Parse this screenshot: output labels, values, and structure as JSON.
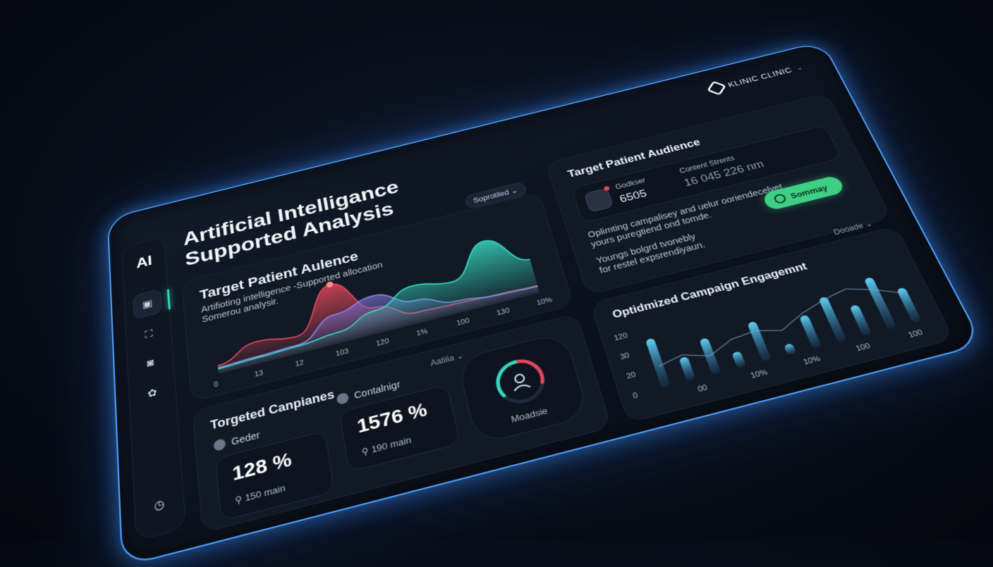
{
  "brand": {
    "name": "KLINIC CLINIC",
    "chevron": "⌄"
  },
  "sidebar": {
    "logo_text": "AI",
    "icons": [
      "dashboard-icon",
      "scan-icon",
      "camera-icon",
      "globe-icon",
      "timer-icon"
    ]
  },
  "hero": {
    "line1": "Artificial Intelligance",
    "line2": "Supported Analysis"
  },
  "audience_chart": {
    "title": "Target Patient Aulence",
    "subtitle_line1": "Artifioting intelligence -Supported allocation",
    "subtitle_line2": "Somerou analysir.",
    "filter": "Soprotiled ⌄",
    "x_ticks": [
      "0",
      "13",
      "12",
      "103",
      "120",
      "1%",
      "100",
      "130",
      "10%"
    ]
  },
  "audience_panel": {
    "title": "Target Patient Audience",
    "stat1_label": "Godkser",
    "stat1_value": "6505",
    "stat2_label": "Content Strents",
    "stat2_value": "16 045 226 nm",
    "desc1_line1": "Oplimting campalisey and uelur ooriendecelyet",
    "desc1_line2": "yours puregtiend ond tomde.",
    "desc2_line1": "Youngs bolgrd tvonebly",
    "desc2_line2": "for restel expsrendiyaun.",
    "button": "Sommay"
  },
  "campaigns": {
    "title": "Torgeted Canpianes",
    "dropdown": "Aatiiia ⌄",
    "gender_label": "Geder",
    "gender_value": "128 %",
    "gender_sub": "150 main",
    "contact_label": "Contalnigr",
    "contact_value": "1576 %",
    "contact_sub": "190 main",
    "gauge_label": "Moadsie"
  },
  "engagement": {
    "title": "Optidmized Campaign Engagemnt",
    "dropdown": "Dooade ⌄",
    "y_ticks": [
      "120",
      "30",
      "20",
      "0"
    ],
    "x_ticks": [
      "00",
      "10%",
      "10%",
      "100",
      "100"
    ]
  },
  "chart_data": [
    {
      "type": "area",
      "title": "Target Patient Aulence",
      "x": [
        "0",
        "13",
        "12",
        "103",
        "120",
        "1%",
        "100",
        "130",
        "10%"
      ],
      "series": [
        {
          "values": [
            5,
            28,
            20,
            92,
            35,
            10,
            8,
            6,
            4
          ]
        },
        {
          "values": [
            2,
            4,
            6,
            40,
            55,
            30,
            12,
            5,
            3
          ]
        },
        {
          "values": [
            0,
            2,
            4,
            10,
            30,
            55,
            45,
            100,
            50
          ]
        }
      ]
    },
    {
      "type": "bar",
      "title": "Optidmized Campaign Engagemnt",
      "y_ticks": [
        "120",
        "30",
        "20",
        "0"
      ],
      "values": [
        95,
        45,
        70,
        30,
        78,
        20,
        65,
        90,
        60,
        105,
        70
      ],
      "line": [
        40,
        50,
        35,
        55,
        60,
        48,
        70,
        85,
        95,
        80,
        60
      ]
    }
  ],
  "colors": {
    "accent_blue": "#4ea3ff",
    "teal": "#37d6c0",
    "red": "#e0485a",
    "green": "#3ecf84",
    "bar_cyan": "#5fd3f3"
  }
}
